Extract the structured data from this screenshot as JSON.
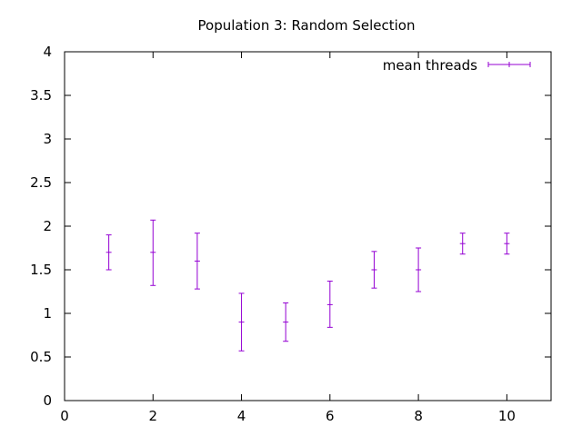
{
  "chart_data": {
    "type": "scatter",
    "title": "Population 3: Random Selection",
    "xlabel": "",
    "ylabel": "",
    "xlim": [
      0,
      11
    ],
    "ylim": [
      0,
      4
    ],
    "x_ticks": [
      0,
      2,
      4,
      6,
      8,
      10
    ],
    "x_tick_labels": [
      "0",
      "2",
      "4",
      "6",
      "8",
      "10"
    ],
    "y_ticks": [
      0,
      0.5,
      1,
      1.5,
      2,
      2.5,
      3,
      3.5,
      4
    ],
    "y_tick_labels": [
      "0",
      "0.5",
      "1",
      "1.5",
      "2",
      "2.5",
      "3",
      "3.5",
      "4"
    ],
    "grid": false,
    "legend": "top-right",
    "series": [
      {
        "name": "mean threads",
        "color": "#9400d3",
        "points": [
          {
            "x": 1,
            "y": 1.7,
            "ylow": 1.5,
            "yhigh": 1.9
          },
          {
            "x": 2,
            "y": 1.7,
            "ylow": 1.32,
            "yhigh": 2.07
          },
          {
            "x": 3,
            "y": 1.6,
            "ylow": 1.28,
            "yhigh": 1.92
          },
          {
            "x": 4,
            "y": 0.9,
            "ylow": 0.57,
            "yhigh": 1.23
          },
          {
            "x": 5,
            "y": 0.9,
            "ylow": 0.68,
            "yhigh": 1.12
          },
          {
            "x": 6,
            "y": 1.1,
            "ylow": 0.84,
            "yhigh": 1.37
          },
          {
            "x": 7,
            "y": 1.5,
            "ylow": 1.29,
            "yhigh": 1.71
          },
          {
            "x": 8,
            "y": 1.5,
            "ylow": 1.25,
            "yhigh": 1.75
          },
          {
            "x": 9,
            "y": 1.8,
            "ylow": 1.68,
            "yhigh": 1.92
          },
          {
            "x": 10,
            "y": 1.8,
            "ylow": 1.68,
            "yhigh": 1.92
          }
        ]
      }
    ]
  }
}
